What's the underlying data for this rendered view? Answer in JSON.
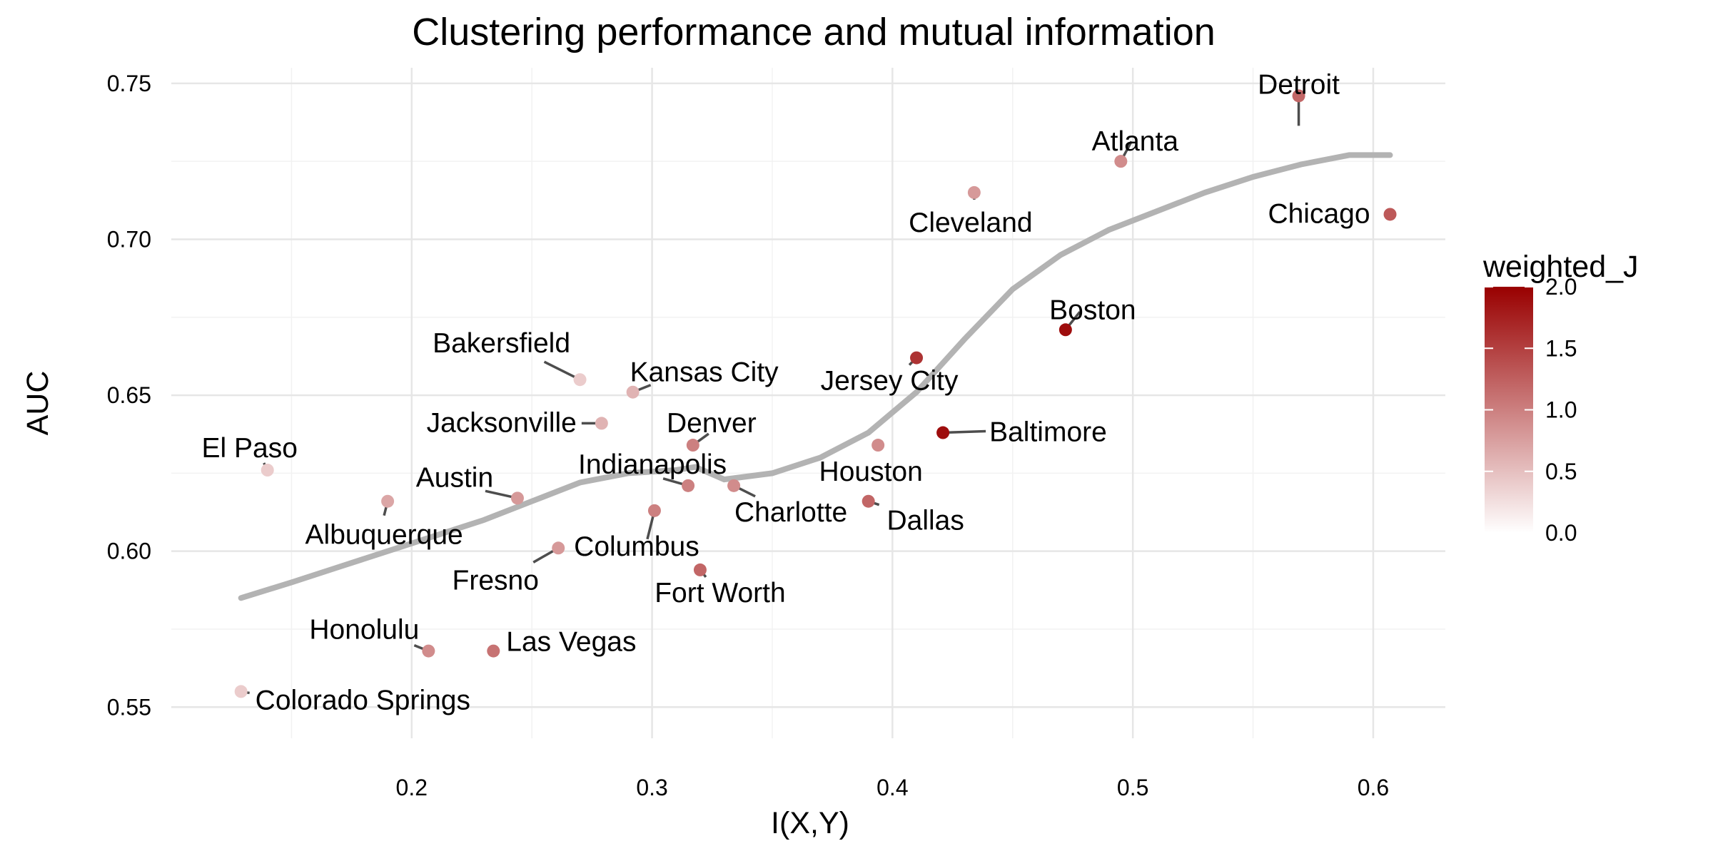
{
  "chart_data": {
    "type": "scatter",
    "title": "Clustering performance and mutual information",
    "xlabel": "I(X,Y)",
    "ylabel": "AUC",
    "xlim": [
      0.1,
      0.63
    ],
    "ylim": [
      0.54,
      0.755
    ],
    "x_ticks": [
      "0.2",
      "0.3",
      "0.4",
      "0.5",
      "0.6"
    ],
    "x_tick_values": [
      0.2,
      0.3,
      0.4,
      0.5,
      0.6
    ],
    "y_ticks": [
      "0.55",
      "0.60",
      "0.65",
      "0.70",
      "0.75"
    ],
    "y_tick_values": [
      0.55,
      0.6,
      0.65,
      0.7,
      0.75
    ],
    "grid": true,
    "legend": {
      "title": "weighted_J",
      "position": "right",
      "min": 0.0,
      "max": 2.0,
      "ticks": [
        "0.0",
        "0.5",
        "1.0",
        "1.5",
        "2.0"
      ],
      "tick_values": [
        0,
        0.5,
        1.0,
        1.5,
        2.0
      ],
      "low_color": "#ffffff",
      "high_color": "#990000"
    },
    "points": [
      {
        "city": "Detroit",
        "x": 0.569,
        "y": 0.746,
        "weighted_J": 1.2
      },
      {
        "city": "Atlanta",
        "x": 0.495,
        "y": 0.725,
        "weighted_J": 0.9
      },
      {
        "city": "Cleveland",
        "x": 0.434,
        "y": 0.715,
        "weighted_J": 0.8
      },
      {
        "city": "Chicago",
        "x": 0.607,
        "y": 0.708,
        "weighted_J": 1.3
      },
      {
        "city": "Boston",
        "x": 0.472,
        "y": 0.671,
        "weighted_J": 1.9
      },
      {
        "city": "Jersey City",
        "x": 0.41,
        "y": 0.662,
        "weighted_J": 1.6
      },
      {
        "city": "Bakersfield",
        "x": 0.27,
        "y": 0.655,
        "weighted_J": 0.4
      },
      {
        "city": "Kansas City",
        "x": 0.292,
        "y": 0.651,
        "weighted_J": 0.6
      },
      {
        "city": "Jacksonville",
        "x": 0.279,
        "y": 0.641,
        "weighted_J": 0.6
      },
      {
        "city": "Baltimore",
        "x": 0.421,
        "y": 0.638,
        "weighted_J": 1.9
      },
      {
        "city": "Denver",
        "x": 0.317,
        "y": 0.634,
        "weighted_J": 1.0
      },
      {
        "city": "Houston",
        "x": 0.394,
        "y": 0.634,
        "weighted_J": 0.9
      },
      {
        "city": "El Paso",
        "x": 0.14,
        "y": 0.626,
        "weighted_J": 0.4
      },
      {
        "city": "Indianapolis",
        "x": 0.315,
        "y": 0.621,
        "weighted_J": 1.0
      },
      {
        "city": "Charlotte",
        "x": 0.334,
        "y": 0.621,
        "weighted_J": 0.9
      },
      {
        "city": "Austin",
        "x": 0.244,
        "y": 0.617,
        "weighted_J": 0.8
      },
      {
        "city": "Albuquerque",
        "x": 0.19,
        "y": 0.616,
        "weighted_J": 0.7
      },
      {
        "city": "Dallas",
        "x": 0.39,
        "y": 0.616,
        "weighted_J": 1.2
      },
      {
        "city": "Columbus",
        "x": 0.301,
        "y": 0.613,
        "weighted_J": 1.0
      },
      {
        "city": "Fresno",
        "x": 0.261,
        "y": 0.601,
        "weighted_J": 0.8
      },
      {
        "city": "Fort Worth",
        "x": 0.32,
        "y": 0.594,
        "weighted_J": 1.2
      },
      {
        "city": "Honolulu",
        "x": 0.207,
        "y": 0.568,
        "weighted_J": 0.9
      },
      {
        "city": "Las Vegas",
        "x": 0.234,
        "y": 0.568,
        "weighted_J": 1.1
      },
      {
        "city": "Colorado Springs",
        "x": 0.129,
        "y": 0.555,
        "weighted_J": 0.4
      }
    ],
    "smooth_line": {
      "color": "#b3b3b3",
      "x": [
        0.129,
        0.15,
        0.17,
        0.19,
        0.21,
        0.23,
        0.25,
        0.27,
        0.29,
        0.31,
        0.318,
        0.33,
        0.35,
        0.37,
        0.39,
        0.41,
        0.43,
        0.45,
        0.47,
        0.49,
        0.51,
        0.53,
        0.55,
        0.57,
        0.59,
        0.607
      ],
      "y": [
        0.585,
        0.59,
        0.595,
        0.6,
        0.605,
        0.61,
        0.616,
        0.622,
        0.625,
        0.626,
        0.627,
        0.623,
        0.625,
        0.63,
        0.638,
        0.651,
        0.668,
        0.684,
        0.695,
        0.703,
        0.709,
        0.715,
        0.72,
        0.724,
        0.727,
        0.727
      ]
    }
  }
}
